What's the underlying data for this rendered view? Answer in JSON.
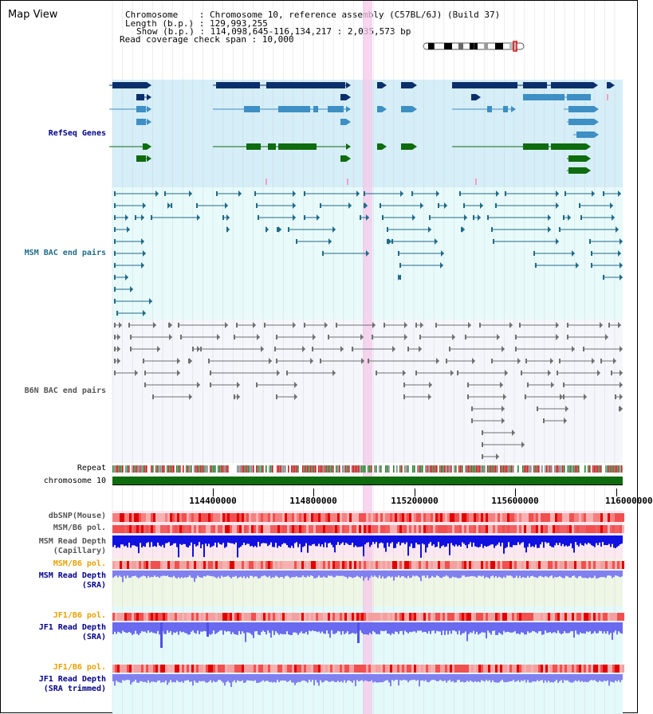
{
  "app": {
    "title": "Map View"
  },
  "info": {
    "chromosome_line": "Chromosome    : Chromosome 10, reference assembly (C57BL/6J) (Build 37)",
    "length_line": "Length (b.p.) : 129,993,255",
    "show_line": "Show (b.p.) : 114,098,645-116,134,217 : 2,035,573 bp",
    "coverage_line": "Read coverage check span : 10,000"
  },
  "tracks": {
    "refseq": "RefSeq Genes",
    "msm_bac": "MSM BAC end pairs",
    "b6n_bac": "B6N BAC end pairs",
    "repeat": "Repeat",
    "chromosome": "chromosome 10",
    "dbsnp": "dbSNP(Mouse)",
    "msm_b6_pol_1": "MSM/B6 pol.",
    "msm_depth_cap_1": "MSM Read Depth",
    "msm_depth_cap_2": "(Capillary)",
    "msm_b6_pol_2": "MSM/B6 pol.",
    "msm_depth_sra_1": "MSM Read Depth",
    "msm_depth_sra_2": "(SRA)",
    "jf1_b6_pol_1": "JF1/B6 pol.",
    "jf1_depth_sra_1": "JF1 Read Depth",
    "jf1_depth_sra_2": "(SRA)",
    "jf1_b6_pol_2": "JF1/B6 pol.",
    "jf1_depth_trim_1": "JF1 Read Depth",
    "jf1_depth_trim_2": "(SRA trimmed)"
  },
  "axis": {
    "ticks": [
      "114400000",
      "114800000",
      "115200000",
      "115600000",
      "116000000"
    ]
  },
  "colors": {
    "refseq_bg": "#d6eef8",
    "msm_bg": "#e8fafa",
    "b6n_bg": "#f0f4fa",
    "highlight": "#f7c8e8",
    "gene_dark": "#0b2f6b",
    "gene_mid": "#3d8fc4",
    "gene_green": "#0e6b0e",
    "msm_line": "#1f6b8a",
    "b6n_line": "#707070",
    "chrom_green": "#0e6b0e",
    "depth_dark": "#1010e0",
    "depth_light": "#8080f0",
    "label_msm": "#1f6b8a",
    "label_blue": "#00008b",
    "label_orange": "#e8a000"
  }
}
